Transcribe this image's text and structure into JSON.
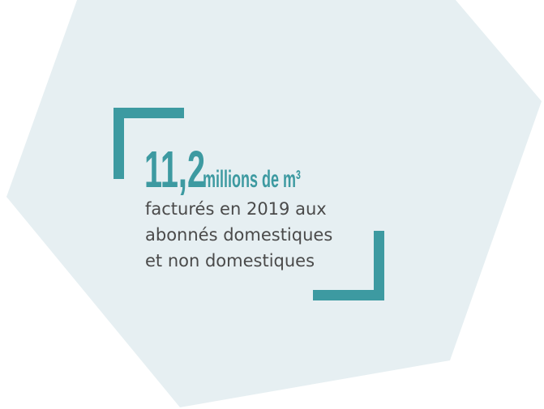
{
  "figure": {
    "value": "11,2",
    "unit": "millions de m³",
    "lines": [
      "facturés en 2019 aux",
      "abonnés domestiques",
      "et non domestiques"
    ]
  }
}
